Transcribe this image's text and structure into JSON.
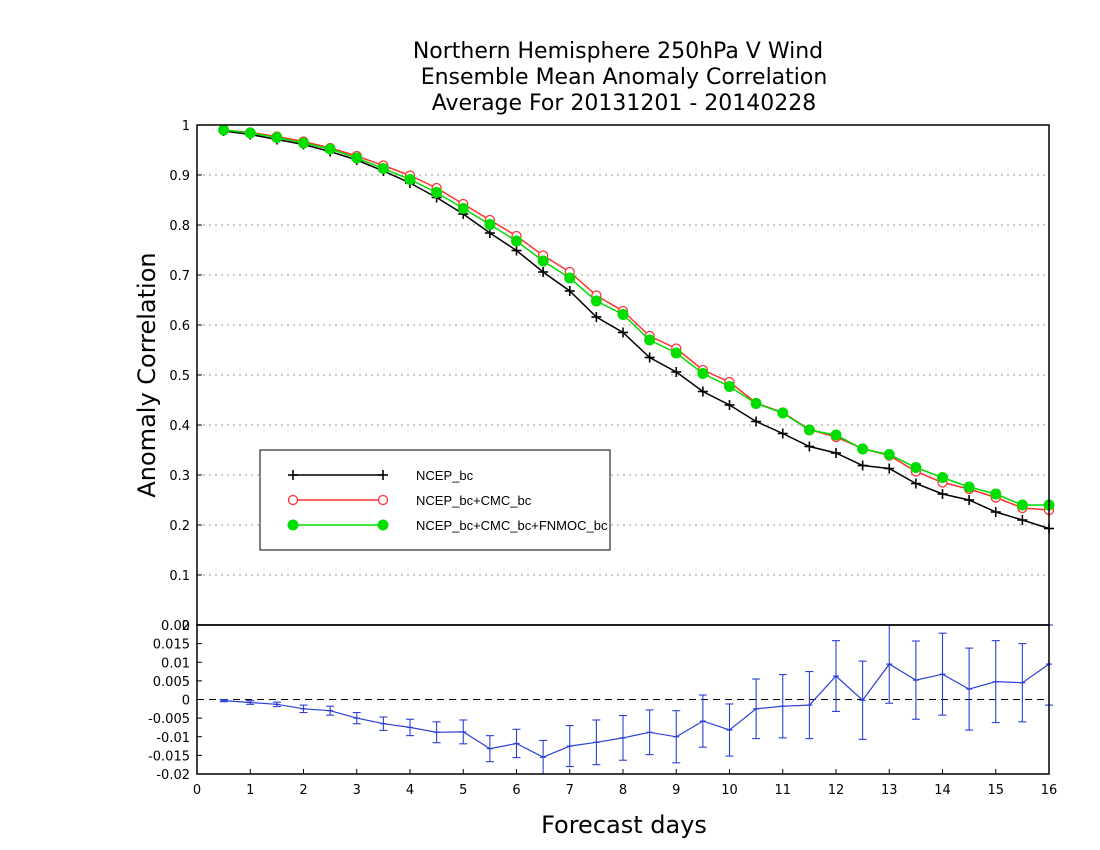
{
  "colors": {
    "ncep": "#000000",
    "ncep_cmc": "#ff3030",
    "ncep_cmc_fnmoc": "#00dd00",
    "diff": "#2a3fd6",
    "grid": "#999999"
  },
  "chart_data": [
    {
      "type": "line",
      "title": [
        "Northern Hemisphere 250hPa V Wind",
        "Ensemble Mean Anomaly Correlation",
        "Average For 20131201 - 20140228"
      ],
      "ylabel": "Anomaly Correlation",
      "xlim": [
        0,
        16
      ],
      "ylim": [
        0,
        1
      ],
      "yticks": [
        "0",
        "0.1",
        "0.2",
        "0.3",
        "0.4",
        "0.5",
        "0.6",
        "0.7",
        "0.8",
        "0.9",
        "1"
      ],
      "grid": true,
      "legend_position": "left-middle",
      "x": [
        0.5,
        1,
        1.5,
        2,
        2.5,
        3,
        3.5,
        4,
        4.5,
        5,
        5.5,
        6,
        6.5,
        7,
        7.5,
        8,
        8.5,
        9,
        9.5,
        10,
        10.5,
        11,
        11.5,
        12,
        12.5,
        13,
        13.5,
        14,
        14.5,
        15,
        15.5,
        16
      ],
      "series": [
        {
          "name": "NCEP_bc",
          "marker": "plus",
          "values": [
            0.988,
            0.981,
            0.971,
            0.961,
            0.947,
            0.93,
            0.908,
            0.884,
            0.855,
            0.822,
            0.784,
            0.749,
            0.706,
            0.668,
            0.616,
            0.585,
            0.535,
            0.506,
            0.467,
            0.44,
            0.407,
            0.383,
            0.357,
            0.344,
            0.319,
            0.313,
            0.283,
            0.262,
            0.25,
            0.226,
            0.21,
            0.193
          ]
        },
        {
          "name": "NCEP_bc+CMC_bc",
          "marker": "open-circle",
          "values": [
            0.99,
            0.985,
            0.977,
            0.967,
            0.954,
            0.938,
            0.919,
            0.899,
            0.874,
            0.842,
            0.81,
            0.778,
            0.739,
            0.706,
            0.659,
            0.628,
            0.578,
            0.553,
            0.51,
            0.486,
            0.444,
            0.425,
            0.391,
            0.376,
            0.353,
            0.339,
            0.307,
            0.285,
            0.272,
            0.255,
            0.234,
            0.23
          ]
        },
        {
          "name": "NCEP_bc+CMC_bc+FNMOC_bc",
          "marker": "filled-circle",
          "values": [
            0.99,
            0.984,
            0.975,
            0.964,
            0.952,
            0.934,
            0.913,
            0.891,
            0.865,
            0.833,
            0.801,
            0.768,
            0.728,
            0.694,
            0.648,
            0.621,
            0.57,
            0.544,
            0.503,
            0.477,
            0.443,
            0.424,
            0.39,
            0.38,
            0.352,
            0.341,
            0.315,
            0.295,
            0.276,
            0.262,
            0.24,
            0.24
          ]
        }
      ]
    },
    {
      "type": "line",
      "xlabel": "Forecast days",
      "xlim": [
        0,
        16
      ],
      "ylim": [
        -0.02,
        0.02
      ],
      "xticks": [
        "0",
        "1",
        "2",
        "3",
        "4",
        "5",
        "6",
        "7",
        "8",
        "9",
        "10",
        "11",
        "12",
        "13",
        "14",
        "15",
        "16"
      ],
      "yticks": [
        "-0.02",
        "-0.015",
        "-0.01",
        "-0.005",
        "0",
        "0.005",
        "0.01",
        "0.015",
        "0.02"
      ],
      "error_bars": true,
      "x": [
        0.5,
        1,
        1.5,
        2,
        2.5,
        3,
        3.5,
        4,
        4.5,
        5,
        5.5,
        6,
        6.5,
        7,
        7.5,
        8,
        8.5,
        9,
        9.5,
        10,
        10.5,
        11,
        11.5,
        12,
        12.5,
        13,
        13.5,
        14,
        14.5,
        15,
        15.5,
        16
      ],
      "values": [
        -0.0003,
        -0.0008,
        -0.0013,
        -0.0025,
        -0.003,
        -0.005,
        -0.0065,
        -0.0075,
        -0.0088,
        -0.0087,
        -0.0132,
        -0.0118,
        -0.0155,
        -0.0125,
        -0.0115,
        -0.0103,
        -0.0088,
        -0.01,
        -0.0058,
        -0.0082,
        -0.0025,
        -0.0018,
        -0.0015,
        0.0063,
        -0.0002,
        0.0095,
        0.0052,
        0.0068,
        0.0028,
        0.0048,
        0.0045,
        0.0095
      ],
      "errors": [
        0.0003,
        0.0005,
        0.0006,
        0.001,
        0.0012,
        0.0015,
        0.0018,
        0.0022,
        0.0028,
        0.0032,
        0.0035,
        0.0038,
        0.0045,
        0.0055,
        0.006,
        0.006,
        0.006,
        0.007,
        0.007,
        0.007,
        0.008,
        0.0085,
        0.009,
        0.0095,
        0.0105,
        0.0105,
        0.0105,
        0.011,
        0.011,
        0.011,
        0.0105,
        0.011
      ]
    }
  ]
}
